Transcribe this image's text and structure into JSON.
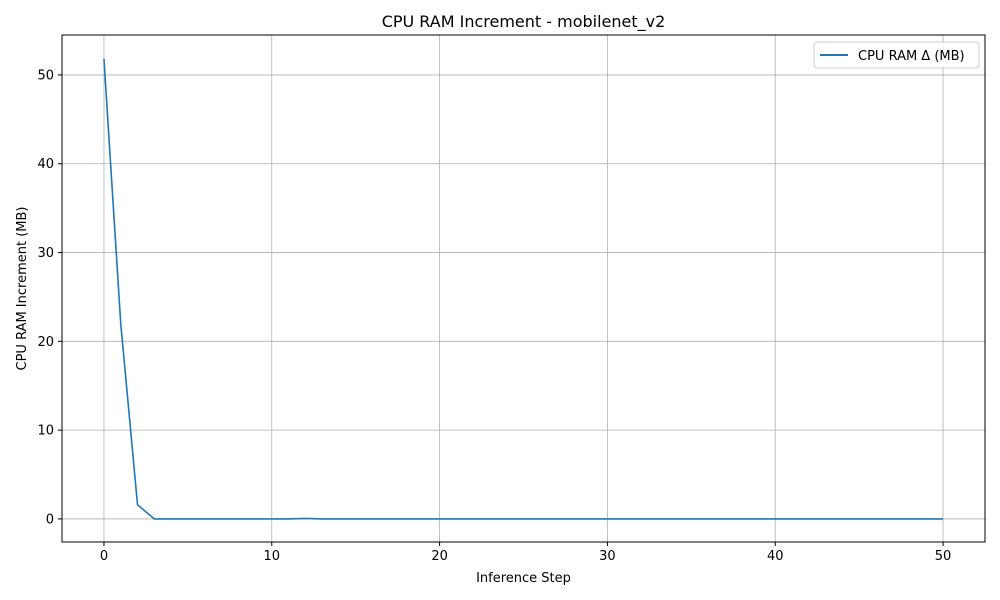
{
  "chart_data": {
    "type": "line",
    "title": "CPU RAM Increment - mobilenet_v2",
    "xlabel": "Inference Step",
    "ylabel": "CPU RAM Increment (MB)",
    "xlim": [
      -2.5,
      52.5
    ],
    "ylim": [
      -2.6,
      54.5
    ],
    "xticks": [
      0,
      10,
      20,
      30,
      40,
      50
    ],
    "yticks": [
      0,
      10,
      20,
      30,
      40,
      50
    ],
    "grid": true,
    "legend_position": "top-right",
    "series": [
      {
        "name": "CPU RAM Δ (MB)",
        "color": "#1f77b4",
        "x": [
          0,
          1,
          2,
          3,
          4,
          5,
          6,
          7,
          8,
          9,
          10,
          11,
          12,
          13,
          14,
          15,
          16,
          17,
          18,
          19,
          20,
          21,
          22,
          23,
          24,
          25,
          26,
          27,
          28,
          29,
          30,
          31,
          32,
          33,
          34,
          35,
          36,
          37,
          38,
          39,
          40,
          41,
          42,
          43,
          44,
          45,
          46,
          47,
          48,
          49,
          50
        ],
        "y": [
          51.8,
          22.0,
          1.6,
          0,
          0,
          0,
          0,
          0,
          0,
          0,
          0,
          0,
          0.05,
          0,
          0,
          0,
          0,
          0,
          0,
          0,
          0,
          0,
          0,
          0,
          0,
          0,
          0,
          0,
          0,
          0,
          0,
          0,
          0,
          0,
          0,
          0,
          0,
          0,
          0,
          0,
          0,
          0,
          0,
          0,
          0,
          0,
          0,
          0,
          0,
          0,
          0
        ]
      }
    ]
  }
}
